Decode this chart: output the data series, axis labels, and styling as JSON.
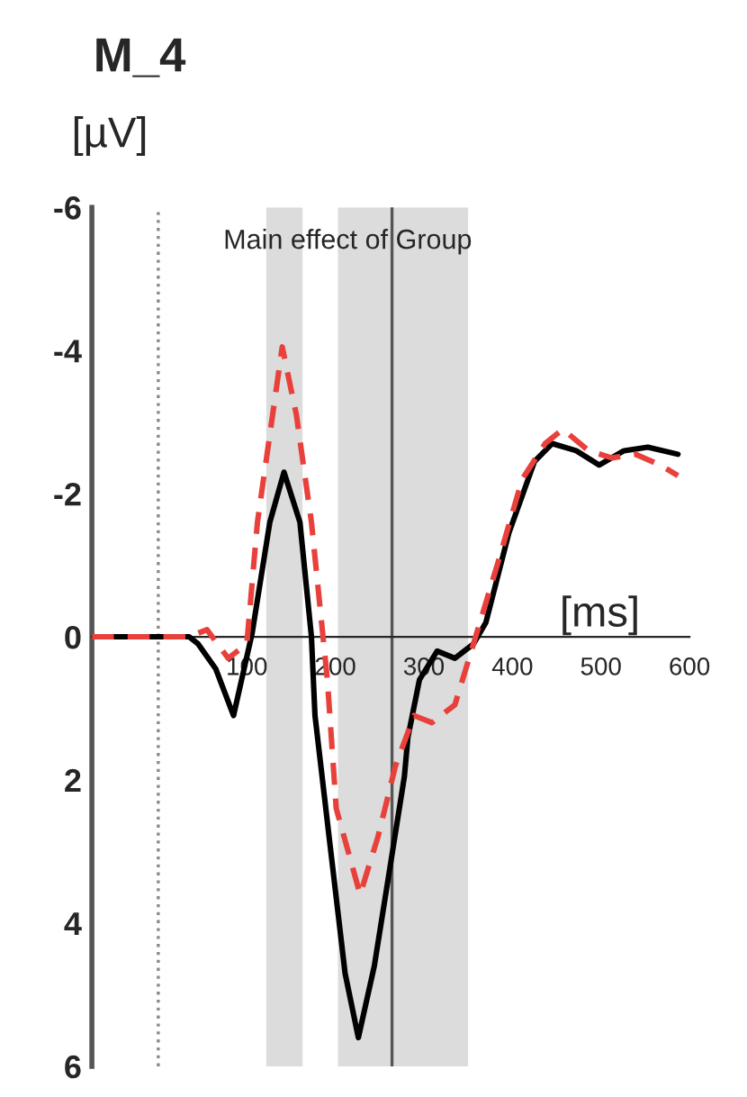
{
  "chart_data": {
    "type": "line",
    "title": "M_4",
    "ylabel": "[µV]",
    "xlabel": "[ms]",
    "annotations": [
      "Main effect of Group"
    ],
    "xlim": [
      -75,
      600
    ],
    "xticks": [
      100,
      200,
      300,
      400,
      500,
      600
    ],
    "ylim": [
      6,
      -6
    ],
    "yticks": [
      -6,
      -4,
      -2,
      0,
      2,
      4,
      6
    ],
    "grid": false,
    "legend": false,
    "marker": "none",
    "ref_lines": [
      {
        "axis": "x",
        "value": 0,
        "color": "#888888",
        "line_style": "dotted"
      },
      {
        "axis": "x",
        "value": 264,
        "color": "#555555",
        "line_style": "solid"
      }
    ],
    "bands": [
      {
        "axis": "x",
        "from": 122,
        "to": 163,
        "color": "#dcdcdc"
      },
      {
        "axis": "x",
        "from": 203,
        "to": 350,
        "color": "#dcdcdc"
      }
    ],
    "series": [
      {
        "color": "#000000",
        "line_style": "solid",
        "x": [
          -75,
          35,
          45,
          65,
          85,
          106,
          126,
          142,
          160,
          173,
          177,
          193,
          211,
          226,
          244,
          262,
          278,
          282,
          295,
          315,
          335,
          356,
          370,
          396,
          425,
          445,
          472,
          498,
          526,
          553,
          587
        ],
        "values": [
          0,
          0,
          0.1,
          0.45,
          1.1,
          -0.05,
          -1.6,
          -2.3,
          -1.6,
          0,
          1.1,
          2.8,
          4.7,
          5.6,
          4.6,
          3.2,
          1.95,
          1.4,
          0.6,
          0.2,
          0.3,
          0.1,
          -0.2,
          -1.45,
          -2.45,
          -2.7,
          -2.6,
          -2.4,
          -2.6,
          -2.65,
          -2.55
        ]
      },
      {
        "color": "#e8413c",
        "line_style": "dashed",
        "x": [
          -75,
          35,
          55,
          79,
          100,
          112,
          140,
          156,
          173,
          191,
          201,
          228,
          248,
          268,
          289,
          309,
          335,
          356,
          384,
          411,
          437,
          457,
          486,
          512,
          539,
          567,
          587
        ],
        "values": [
          0,
          0,
          -0.1,
          0.3,
          0.1,
          -1.6,
          -4.05,
          -3.1,
          -1.6,
          0.6,
          2.4,
          3.6,
          2.8,
          1.8,
          1.1,
          1.2,
          0.95,
          0.1,
          -1.05,
          -2.2,
          -2.7,
          -2.9,
          -2.6,
          -2.5,
          -2.55,
          -2.4,
          -2.25
        ]
      }
    ]
  }
}
